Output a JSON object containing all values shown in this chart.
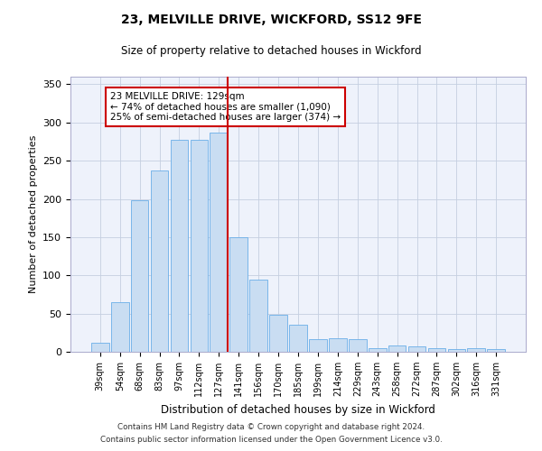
{
  "title1": "23, MELVILLE DRIVE, WICKFORD, SS12 9FE",
  "title2": "Size of property relative to detached houses in Wickford",
  "xlabel": "Distribution of detached houses by size in Wickford",
  "ylabel": "Number of detached properties",
  "categories": [
    "39sqm",
    "54sqm",
    "68sqm",
    "83sqm",
    "97sqm",
    "112sqm",
    "127sqm",
    "141sqm",
    "156sqm",
    "170sqm",
    "185sqm",
    "199sqm",
    "214sqm",
    "229sqm",
    "243sqm",
    "258sqm",
    "272sqm",
    "287sqm",
    "302sqm",
    "316sqm",
    "331sqm"
  ],
  "values": [
    12,
    65,
    198,
    237,
    277,
    277,
    287,
    150,
    95,
    48,
    35,
    17,
    18,
    17,
    5,
    8,
    7,
    5,
    4,
    5,
    3
  ],
  "bar_color": "#c9ddf2",
  "bar_edge_color": "#6aaee8",
  "vline_x_index": 6,
  "vline_color": "#cc0000",
  "annotation_text": "23 MELVILLE DRIVE: 129sqm\n← 74% of detached houses are smaller (1,090)\n25% of semi-detached houses are larger (374) →",
  "annotation_box_color": "#ffffff",
  "annotation_box_edge_color": "#cc0000",
  "ylim": [
    0,
    360
  ],
  "yticks": [
    0,
    50,
    100,
    150,
    200,
    250,
    300,
    350
  ],
  "footer1": "Contains HM Land Registry data © Crown copyright and database right 2024.",
  "footer2": "Contains public sector information licensed under the Open Government Licence v3.0.",
  "plot_bg_color": "#eef2fb"
}
